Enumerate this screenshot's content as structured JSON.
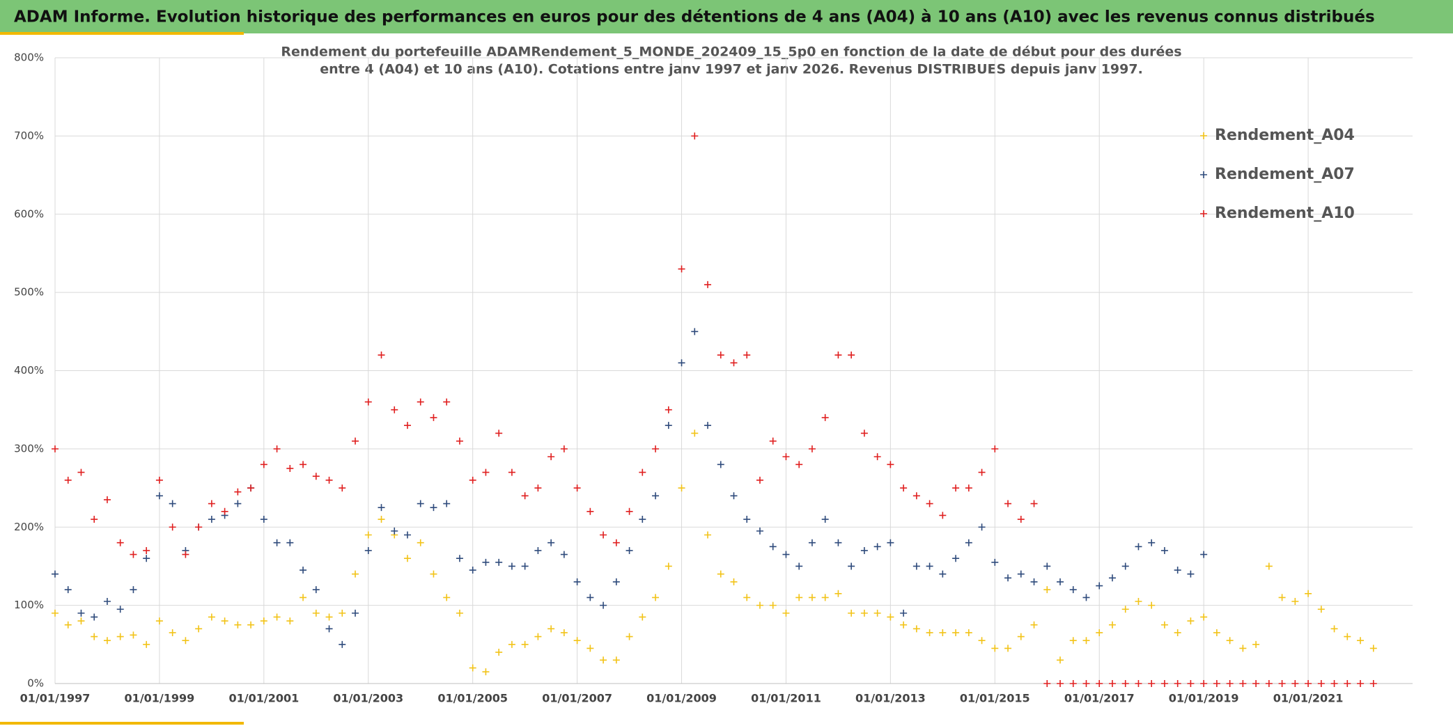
{
  "chart_data": {
    "type": "scatter",
    "title": "ADAM Informe. Evolution historique des performances en euros pour des détentions de 4 ans (A04) à 10 ans (A10) avec les revenus connus distribués",
    "subtitle": [
      "Rendement du portefeuille ADAMRendement_5_MONDE_202409_15_5p0  en fonction de la date de début pour des durées",
      "entre 4 (A04) et 10 ans (A10). Cotations entre janv 1997 et janv 2026. Revenus DISTRIBUES depuis janv 1997."
    ],
    "x": [
      "01/01/1997",
      "01/04/1997",
      "01/07/1997",
      "01/10/1997",
      "01/01/1998",
      "01/04/1998",
      "01/07/1998",
      "01/10/1998",
      "01/01/1999",
      "01/04/1999",
      "01/07/1999",
      "01/10/1999",
      "01/01/2000",
      "01/04/2000",
      "01/07/2000",
      "01/10/2000",
      "01/01/2001",
      "01/04/2001",
      "01/07/2001",
      "01/10/2001",
      "01/01/2002",
      "01/04/2002",
      "01/07/2002",
      "01/10/2002",
      "01/01/2003",
      "01/04/2003",
      "01/07/2003",
      "01/10/2003",
      "01/01/2004",
      "01/04/2004",
      "01/07/2004",
      "01/10/2004",
      "01/01/2005",
      "01/04/2005",
      "01/07/2005",
      "01/10/2005",
      "01/01/2006",
      "01/04/2006",
      "01/07/2006",
      "01/10/2006",
      "01/01/2007",
      "01/04/2007",
      "01/07/2007",
      "01/10/2007",
      "01/01/2008",
      "01/04/2008",
      "01/07/2008",
      "01/10/2008",
      "01/01/2009",
      "01/04/2009",
      "01/07/2009",
      "01/10/2009",
      "01/01/2010",
      "01/04/2010",
      "01/07/2010",
      "01/10/2010",
      "01/01/2011",
      "01/04/2011",
      "01/07/2011",
      "01/10/2011",
      "01/01/2012",
      "01/04/2012",
      "01/07/2012",
      "01/10/2012",
      "01/01/2013",
      "01/04/2013",
      "01/07/2013",
      "01/10/2013",
      "01/01/2014",
      "01/04/2014",
      "01/07/2014",
      "01/10/2014",
      "01/01/2015",
      "01/04/2015",
      "01/07/2015",
      "01/10/2015",
      "01/01/2016",
      "01/04/2016",
      "01/07/2016",
      "01/10/2016",
      "01/01/2017",
      "01/04/2017",
      "01/07/2017",
      "01/10/2017",
      "01/01/2018",
      "01/04/2018",
      "01/07/2018",
      "01/10/2018",
      "01/01/2019",
      "01/04/2019",
      "01/07/2019",
      "01/10/2019",
      "01/01/2020",
      "01/04/2020",
      "01/07/2020",
      "01/10/2020",
      "01/01/2021",
      "01/04/2021",
      "01/07/2021",
      "01/10/2021",
      "01/01/2022",
      "01/04/2022"
    ],
    "series": [
      {
        "name": "Rendement_A04",
        "color": "#f2c318",
        "values": [
          90,
          75,
          80,
          60,
          55,
          60,
          62,
          50,
          80,
          65,
          55,
          70,
          85,
          80,
          75,
          75,
          80,
          85,
          80,
          110,
          90,
          85,
          90,
          140,
          190,
          210,
          190,
          160,
          180,
          140,
          110,
          90,
          20,
          15,
          40,
          50,
          50,
          60,
          70,
          65,
          55,
          45,
          30,
          30,
          60,
          85,
          110,
          150,
          250,
          320,
          190,
          140,
          130,
          110,
          100,
          100,
          90,
          110,
          110,
          110,
          115,
          90,
          90,
          90,
          85,
          75,
          70,
          65,
          65,
          65,
          65,
          55,
          45,
          45,
          60,
          75,
          120,
          30,
          55,
          55,
          65,
          75,
          95,
          105,
          100,
          75,
          65,
          80,
          85,
          65,
          55,
          45,
          50,
          150,
          110,
          105,
          115,
          95,
          70,
          60,
          55,
          45
        ]
      },
      {
        "name": "Rendement_A07",
        "color": "#2f4b7c",
        "values": [
          140,
          120,
          90,
          85,
          105,
          95,
          120,
          160,
          240,
          230,
          170,
          200,
          210,
          215,
          230,
          250,
          210,
          180,
          180,
          145,
          120,
          70,
          50,
          90,
          170,
          225,
          195,
          190,
          230,
          225,
          230,
          160,
          145,
          155,
          155,
          150,
          150,
          170,
          180,
          165,
          130,
          110,
          100,
          130,
          170,
          210,
          240,
          330,
          410,
          450,
          330,
          280,
          240,
          210,
          195,
          175,
          165,
          150,
          180,
          210,
          180,
          150,
          170,
          175,
          180,
          90,
          150,
          150,
          140,
          160,
          180,
          200,
          155,
          135,
          140,
          130,
          150,
          130,
          120,
          110,
          125,
          135,
          150,
          175,
          180,
          170,
          145,
          140,
          165,
          null,
          null,
          null,
          null,
          null,
          null,
          null,
          null,
          null,
          null,
          null,
          null,
          null
        ]
      },
      {
        "name": "Rendement_A10",
        "color": "#e02020",
        "values": [
          300,
          260,
          270,
          210,
          235,
          180,
          165,
          170,
          260,
          200,
          165,
          200,
          230,
          220,
          245,
          250,
          280,
          300,
          275,
          280,
          265,
          260,
          250,
          310,
          360,
          420,
          350,
          330,
          360,
          340,
          360,
          310,
          260,
          270,
          320,
          270,
          240,
          250,
          290,
          300,
          250,
          220,
          190,
          180,
          220,
          270,
          300,
          350,
          530,
          700,
          510,
          420,
          410,
          420,
          260,
          310,
          290,
          280,
          300,
          340,
          420,
          420,
          320,
          290,
          280,
          250,
          240,
          230,
          215,
          250,
          250,
          270,
          300,
          230,
          210,
          230,
          0,
          0,
          0,
          0,
          0,
          0,
          0,
          0,
          0,
          0,
          0,
          0,
          0,
          0,
          0,
          0,
          0,
          0,
          0,
          0,
          0,
          0,
          0,
          0,
          0,
          0
        ]
      }
    ],
    "xlim": [
      "01/01/1997",
      "01/01/2023"
    ],
    "xticks": [
      "01/01/1997",
      "01/01/1999",
      "01/01/2001",
      "01/01/2003",
      "01/01/2005",
      "01/01/2007",
      "01/01/2009",
      "01/01/2011",
      "01/01/2013",
      "01/01/2015",
      "01/01/2017",
      "01/01/2019",
      "01/01/2021"
    ],
    "ylim": [
      0,
      800
    ],
    "yticks": [
      {
        "value": 0,
        "label": "0%"
      },
      {
        "value": 100,
        "label": "100%"
      },
      {
        "value": 200,
        "label": "200%"
      },
      {
        "value": 300,
        "label": "300%"
      },
      {
        "value": 400,
        "label": "400%"
      },
      {
        "value": 500,
        "label": "500%"
      },
      {
        "value": 600,
        "label": "600%"
      },
      {
        "value": 700,
        "label": "700%"
      },
      {
        "value": 800,
        "label": "800%"
      }
    ],
    "grid": true,
    "legend": "upper right"
  }
}
